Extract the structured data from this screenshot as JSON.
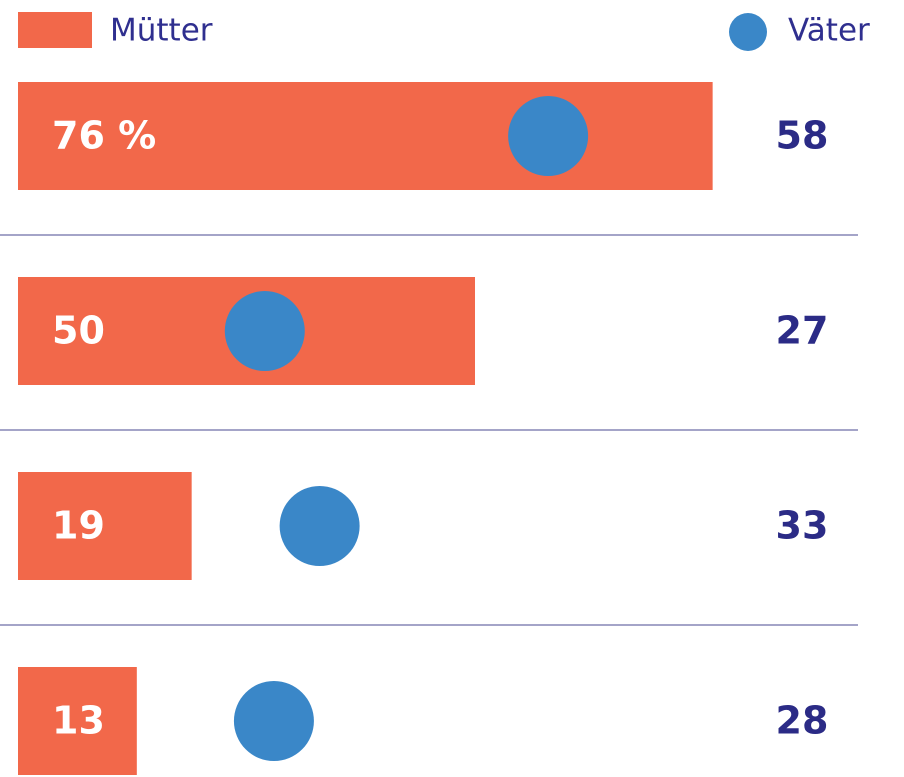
{
  "chart_data": {
    "type": "bar-dot",
    "categories": [
      null,
      null,
      null,
      null
    ],
    "xlim": [
      0,
      100
    ],
    "series": [
      {
        "name": "Mütter",
        "color": "#f2684a",
        "values": [
          76,
          50,
          19,
          13
        ],
        "value_labels": [
          "76 %",
          "50",
          "19",
          "13"
        ]
      },
      {
        "name": "Väter",
        "color": "#3a87c8",
        "values": [
          58,
          27,
          33,
          28
        ]
      }
    ]
  }
}
